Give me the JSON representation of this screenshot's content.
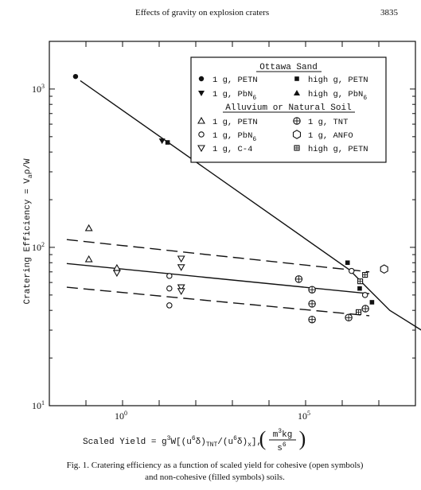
{
  "header": {
    "running_title": "Effects of gravity on explosion craters",
    "page_number": "3835"
  },
  "chart_data": {
    "type": "scatter",
    "x_scale": "log",
    "y_scale": "log",
    "xlim": [
      0.01,
      100000000
    ],
    "ylim": [
      10,
      2000
    ],
    "xticks": [
      {
        "value": 1,
        "label": "10",
        "exp": "0"
      },
      {
        "value": 100000,
        "label": "10",
        "exp": "5"
      }
    ],
    "yticks": [
      {
        "value": 10,
        "label": "10",
        "exp": "1"
      },
      {
        "value": 100,
        "label": "10",
        "exp": "2"
      },
      {
        "value": 1000,
        "label": "10",
        "exp": "3"
      }
    ],
    "ylabel": "Cratering Efficiency = V",
    "ylabel_sub": "a",
    "ylabel_tail": "ρ/W",
    "xlabel": {
      "prefix": "Scaled Yield = g",
      "sup1": "3",
      "mid1": "W[(u",
      "sup2": "6",
      "mid2": "δ)",
      "sub1": "TNT",
      "mid3": "/(u",
      "sup3": "6",
      "mid4": "δ)",
      "sub2": "x",
      "mid5": "],",
      "unit_num": "m",
      "unit_num_sup": "3",
      "unit_num_tail": "kg",
      "unit_den": "s",
      "unit_den_sup": "6"
    },
    "legend": {
      "placement": "top-right",
      "group1_title": "Ottawa Sand",
      "group2_title": "Alluvium or Natural Soil",
      "entries": [
        {
          "symbol": "circle-filled",
          "label": "1 g, PETN",
          "sub": ""
        },
        {
          "symbol": "square-filled",
          "label": "high g, PETN",
          "sub": ""
        },
        {
          "symbol": "triangle-down-filled",
          "label": "1 g, PbN",
          "sub": "6"
        },
        {
          "symbol": "triangle-up-filled",
          "label": "high g, PbN",
          "sub": "6"
        },
        {
          "symbol": "triangle-up-open",
          "label": "1 g, PETN",
          "sub": ""
        },
        {
          "symbol": "cross-circle-open",
          "label": "1 g, TNT",
          "sub": ""
        },
        {
          "symbol": "circle-open",
          "label": "1 g, PbN",
          "sub": "6"
        },
        {
          "symbol": "hexagon-open",
          "label": "1 g, ANFO",
          "sub": ""
        },
        {
          "symbol": "triangle-down-open",
          "label": "1 g, C-4",
          "sub": ""
        },
        {
          "symbol": "square-cross-open",
          "label": "high g, PETN",
          "sub": ""
        }
      ]
    },
    "series": [
      {
        "symbol": "circle-filled",
        "points": [
          [
            0.052,
            1200
          ]
        ]
      },
      {
        "symbol": "triangle-down-filled",
        "points": [
          [
            12,
            470
          ]
        ]
      },
      {
        "symbol": "square-filled",
        "points": [
          [
            17,
            460
          ],
          [
            1400000,
            80
          ],
          [
            3000000,
            55
          ],
          [
            6500000,
            45
          ]
        ]
      },
      {
        "symbol": "triangle-up-filled",
        "points": [
          [
            300000000,
            27
          ]
        ]
      },
      {
        "symbol": "triangle-up-open",
        "points": [
          [
            0.12,
            132
          ],
          [
            0.12,
            84
          ],
          [
            0.7,
            74
          ]
        ]
      },
      {
        "symbol": "triangle-down-open",
        "points": [
          [
            0.7,
            69
          ],
          [
            40,
            85
          ],
          [
            40,
            75
          ],
          [
            40,
            56
          ],
          [
            40,
            53
          ]
        ]
      },
      {
        "symbol": "circle-open",
        "points": [
          [
            19,
            66
          ],
          [
            19,
            55
          ],
          [
            19,
            43
          ],
          [
            1800000,
            71
          ],
          [
            4200000,
            50
          ]
        ]
      },
      {
        "symbol": "square-cross-open",
        "points": [
          [
            3100000,
            61
          ],
          [
            4200000,
            67
          ],
          [
            2800000,
            39
          ]
        ]
      },
      {
        "symbol": "cross-circle-open",
        "points": [
          [
            65000,
            63
          ],
          [
            150000,
            54
          ],
          [
            150000,
            44
          ],
          [
            150000,
            35
          ],
          [
            1500000,
            36
          ],
          [
            4300000,
            41
          ]
        ]
      },
      {
        "symbol": "hexagon-open",
        "points": [
          [
            14000000,
            73
          ]
        ]
      }
    ],
    "lines": [
      {
        "style": "solid",
        "points": [
          [
            0.07,
            1130
          ],
          [
            1600000,
            72
          ],
          [
            5000000,
            55
          ],
          [
            20000000,
            40
          ],
          [
            300000000,
            27
          ]
        ]
      },
      {
        "style": "solid",
        "points": [
          [
            0.03,
            79
          ],
          [
            5500000,
            51
          ]
        ]
      },
      {
        "style": "dashed",
        "points": [
          [
            0.03,
            112
          ],
          [
            5500000,
            70
          ]
        ]
      },
      {
        "style": "dashed",
        "points": [
          [
            0.03,
            56
          ],
          [
            5500000,
            37
          ]
        ]
      }
    ]
  },
  "caption": {
    "line1": "Fig. 1. Cratering efficiency as a function of scaled yield for cohesive (open symbols)",
    "line2": "and non-cohesive (filled symbols) soils."
  }
}
